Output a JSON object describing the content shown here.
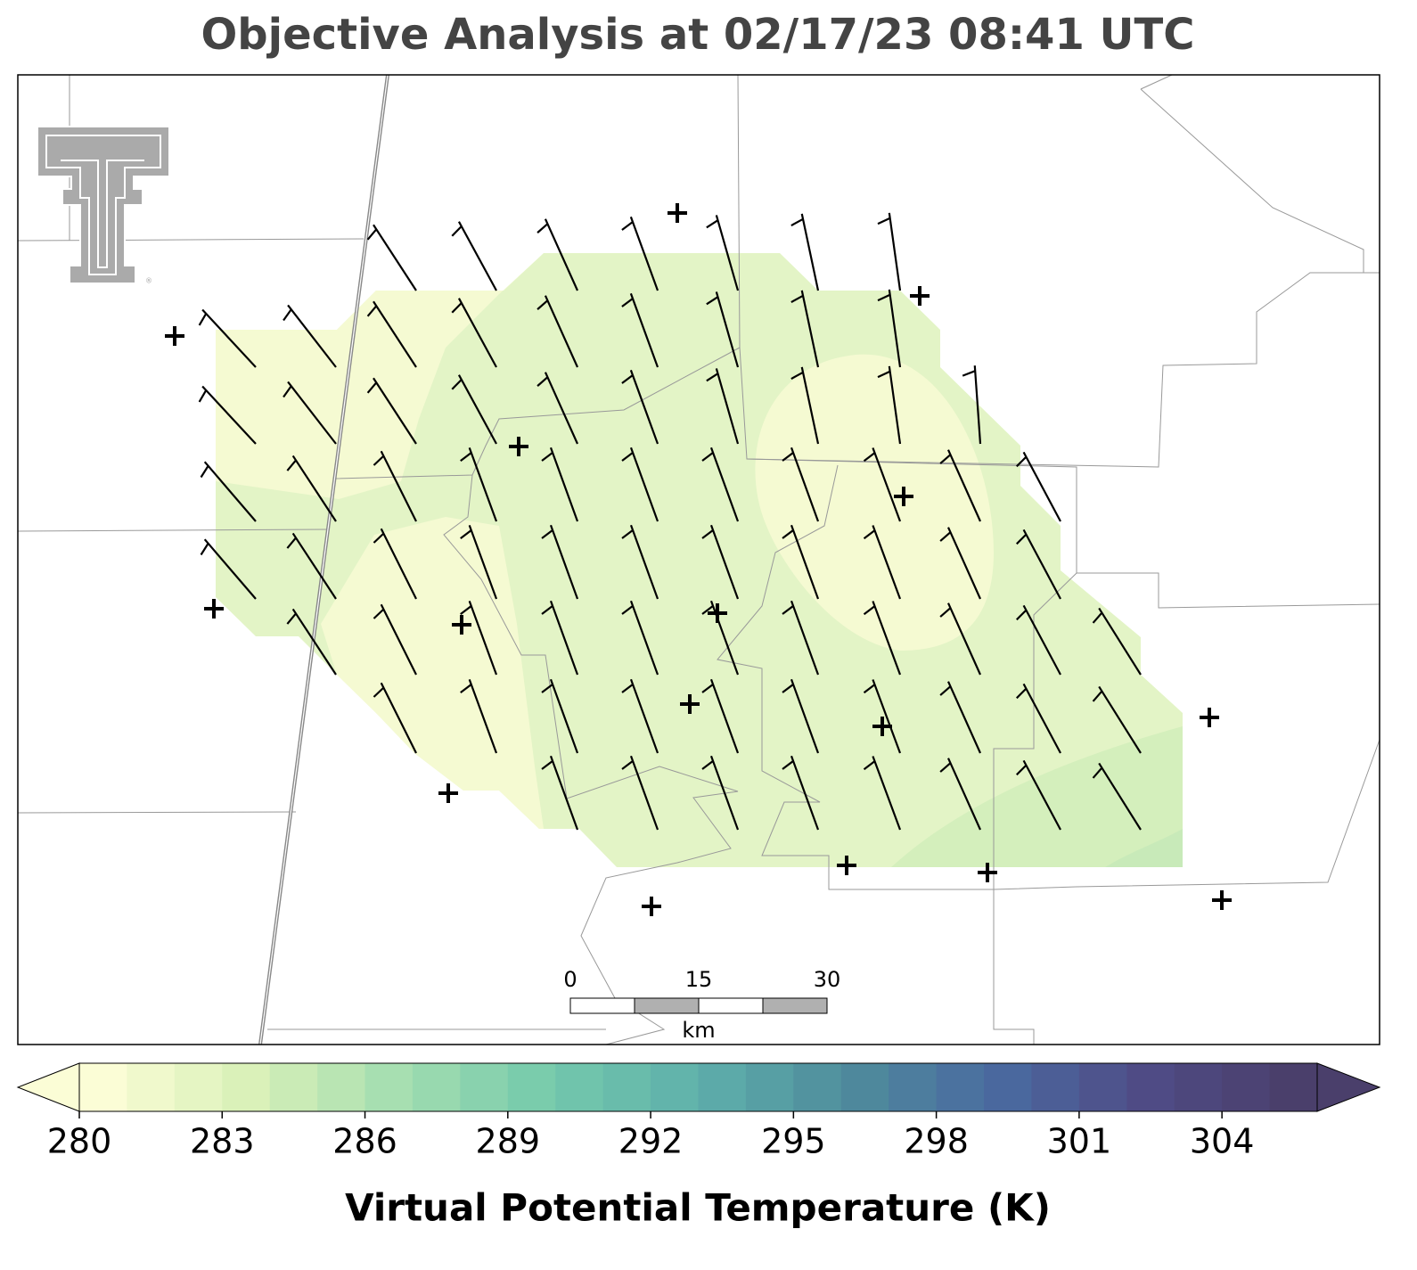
{
  "title": "Objective Analysis at 02/17/23 08:41 UTC",
  "colorbar": {
    "label": "Virtual Potential Temperature (K)",
    "lim": [
      280,
      306
    ],
    "ticks": [
      280,
      283,
      286,
      289,
      292,
      295,
      298,
      301,
      304
    ],
    "colors": [
      "#fbfdd6",
      "#d9f0b8",
      "#a3deb0",
      "#74c9ac",
      "#5fb0ab",
      "#4f8c9c",
      "#4a6aa0",
      "#4f4b86",
      "#4a3f6b"
    ]
  },
  "scale_bar": {
    "labels": [
      "0",
      "15",
      "30"
    ],
    "unit": "km"
  }
}
